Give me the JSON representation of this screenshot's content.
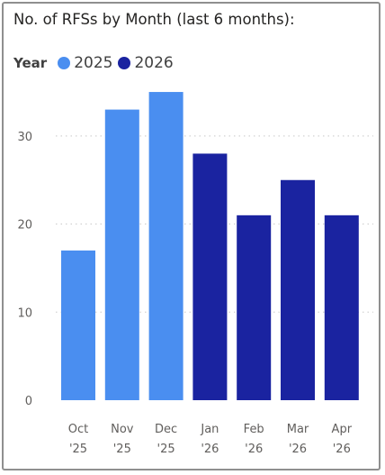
{
  "chart_data": {
    "type": "bar",
    "title": "No. of RFSs by Month (last 6 months):",
    "xlabel": "",
    "ylabel": "",
    "legend": {
      "title": "Year",
      "placement": "top-left",
      "entries": [
        {
          "name": "2025",
          "color": "#4a8ef0"
        },
        {
          "name": "2026",
          "color": "#1a23a0"
        }
      ]
    },
    "categories": [
      [
        "Oct",
        "'25"
      ],
      [
        "Nov",
        "'25"
      ],
      [
        "Dec",
        "'25"
      ],
      [
        "Jan",
        "'26"
      ],
      [
        "Feb",
        "'26"
      ],
      [
        "Mar",
        "'26"
      ],
      [
        "Apr",
        "'26"
      ]
    ],
    "series_of_bar": [
      "2025",
      "2025",
      "2025",
      "2026",
      "2026",
      "2026",
      "2026"
    ],
    "values": [
      17,
      33,
      35,
      28,
      21,
      25,
      21
    ],
    "ylim": [
      0,
      37
    ],
    "yticks": [
      0,
      10,
      20,
      30
    ],
    "grid": true
  }
}
